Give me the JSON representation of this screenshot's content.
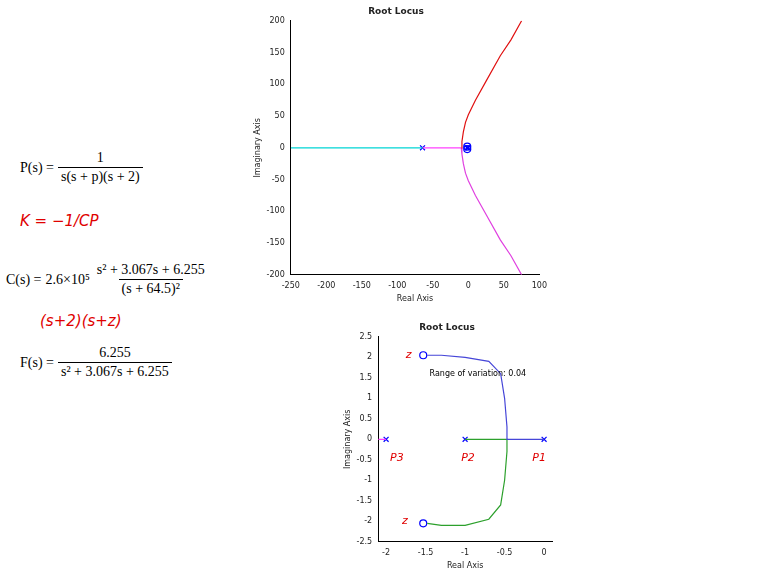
{
  "chart_data": [
    {
      "type": "scatter",
      "title": "Root Locus",
      "xlabel": "Real Axis",
      "ylabel": "Imaginary Axis",
      "xlim": [
        -250,
        100
      ],
      "xticks": [
        -250,
        -200,
        -150,
        -100,
        -50,
        0,
        50,
        100
      ],
      "ylim": [
        -200,
        200
      ],
      "yticks": [
        -200,
        -150,
        -100,
        -50,
        0,
        50,
        100,
        150,
        200
      ],
      "grid": false,
      "series": [
        {
          "type": "line",
          "color": "#00d5d5",
          "x": [
            -250,
            -64.5
          ],
          "values": [
            0,
            0
          ]
        },
        {
          "type": "line",
          "color": "#ff40ff",
          "x": [
            -64.5,
            -10
          ],
          "values": [
            0,
            0
          ]
        },
        {
          "type": "line",
          "color": "#e01010",
          "x": [
            -10,
            -9,
            -7,
            -4,
            0,
            10,
            25,
            45,
            60,
            75
          ],
          "values": [
            0,
            10,
            25,
            40,
            52,
            75,
            105,
            145,
            170,
            200
          ]
        },
        {
          "type": "line",
          "color": "#e040e0",
          "x": [
            -10,
            -9,
            -7,
            -4,
            0,
            10,
            25,
            45,
            60,
            75
          ],
          "values": [
            0,
            -10,
            -25,
            -40,
            -52,
            -75,
            -105,
            -145,
            -170,
            -200
          ]
        },
        {
          "type": "scatter",
          "marker": "x",
          "color": "#0000ff",
          "x": [
            -64.5,
            0,
            -1,
            -2
          ],
          "values": [
            0,
            0,
            0,
            0
          ]
        },
        {
          "type": "scatter",
          "marker": "o",
          "color": "#0000ff",
          "x": [
            -1.53,
            -1.53
          ],
          "values": [
            2,
            -2
          ]
        }
      ]
    },
    {
      "type": "scatter",
      "title": "Root Locus",
      "xlabel": "Real Axis",
      "ylabel": "Imaginary Axis",
      "xlim": [
        -2.1,
        0.1
      ],
      "xticks": [
        -2,
        -1.5,
        -1,
        -0.5,
        0
      ],
      "ylim": [
        -2.5,
        2.5
      ],
      "yticks": [
        -2.5,
        -2,
        -1.5,
        -1,
        -0.5,
        0,
        0.5,
        1,
        1.5,
        2,
        2.5
      ],
      "grid": false,
      "series": [
        {
          "type": "line",
          "color": "#4646d8",
          "x": [
            0,
            -0.47,
            -0.47,
            -0.5,
            -0.55,
            -0.7,
            -1.0,
            -1.3,
            -1.48
          ],
          "values": [
            0,
            0,
            0.3,
            1,
            1.6,
            1.9,
            2.0,
            2.05,
            2.05
          ]
        },
        {
          "type": "line",
          "color": "#2ca02c",
          "x": [
            -1,
            -0.47,
            -0.47,
            -0.5,
            -0.55,
            -0.7,
            -1.0,
            -1.3,
            -1.48
          ],
          "values": [
            0,
            0,
            -0.3,
            -1,
            -1.6,
            -1.95,
            -2.1,
            -2.1,
            -2.05
          ]
        },
        {
          "type": "line",
          "color": "#ff40ff",
          "x": [
            -2,
            -2.1
          ],
          "values": [
            0,
            0
          ]
        },
        {
          "type": "scatter",
          "marker": "x",
          "color": "#0000ff",
          "x": [
            0,
            -1,
            -2
          ],
          "values": [
            0,
            0,
            0
          ]
        },
        {
          "type": "scatter",
          "marker": "o",
          "color": "#0000ff",
          "x": [
            -1.53,
            -1.53
          ],
          "values": [
            2.05,
            -2.05
          ]
        }
      ],
      "annotations": [
        {
          "text": "Range of variation: 0.04",
          "x": -1.45,
          "y": 1.6,
          "color": "#000000"
        },
        {
          "text": "z",
          "x": -1.75,
          "y": 2.05,
          "color": "#e00000"
        },
        {
          "text": "z",
          "x": -1.8,
          "y": -2.0,
          "color": "#e00000"
        },
        {
          "text": "P1",
          "x": -0.15,
          "y": -0.45,
          "color": "#e00000"
        },
        {
          "text": "P2",
          "x": -1.05,
          "y": -0.45,
          "color": "#e00000"
        },
        {
          "text": "P3",
          "x": -1.95,
          "y": -0.45,
          "color": "#e00000"
        }
      ]
    }
  ],
  "equations": [
    {
      "lhs": "P(s) =",
      "numerator": "1",
      "denominator": "s(s + p)(s + 2)"
    },
    {
      "lhs": "C(s) =",
      "gain": "2.6×10⁵",
      "numerator": "s² + 3.067s + 6.255",
      "denominator": "(s + 64.5)²"
    },
    {
      "lhs": "F(s) =",
      "numerator": "6.255",
      "denominator": "s² + 3.067s + 6.255"
    }
  ],
  "handwritten": [
    "K = −1/CP",
    "(s+2)(s+z)"
  ]
}
